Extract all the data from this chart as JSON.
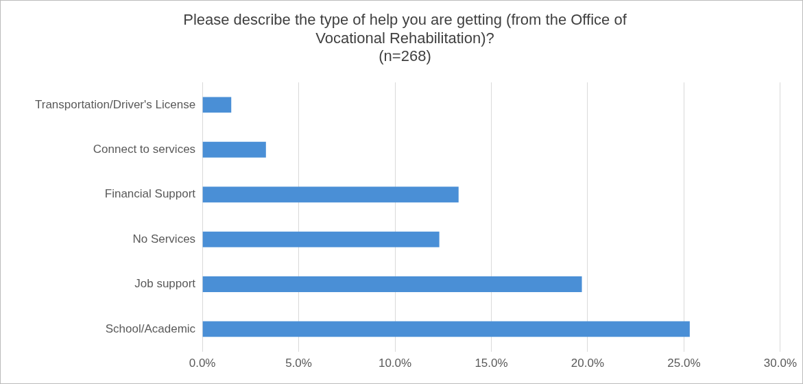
{
  "chart_data": {
    "type": "bar",
    "orientation": "horizontal",
    "title": [
      "Please describe the type of help you are getting (from the Office of",
      "Vocational Rehabilitation)?",
      "(n=268)"
    ],
    "categories": [
      "Transportation/Driver's License",
      "Connect to services",
      "Financial Support",
      "No Services",
      "Job support",
      "School/Academic"
    ],
    "values": [
      1.5,
      3.3,
      13.3,
      12.3,
      19.7,
      25.3
    ],
    "color": "#4a8fd6",
    "xlim": [
      0,
      30
    ],
    "xticks": [
      {
        "value": 0,
        "label": "0.0%"
      },
      {
        "value": 5,
        "label": "5.0%"
      },
      {
        "value": 10,
        "label": "10.0%"
      },
      {
        "value": 15,
        "label": "15.0%"
      },
      {
        "value": 20,
        "label": "20.0%"
      },
      {
        "value": 25,
        "label": "25.0%"
      },
      {
        "value": 30,
        "label": "30.0%"
      }
    ],
    "grid": "x",
    "legend": false
  }
}
